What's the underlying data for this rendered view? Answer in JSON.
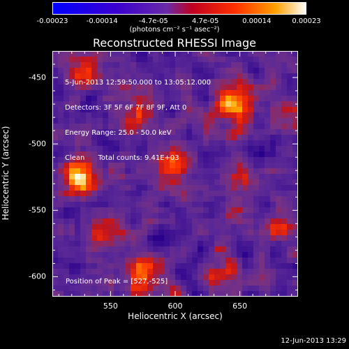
{
  "chart_data": {
    "type": "heatmap",
    "title": "Reconstructed RHESSI Image",
    "xlabel": "Heliocentric X (arcsec)",
    "ylabel": "Heliocentric Y (arcsec)",
    "xlim": [
      505,
      695
    ],
    "ylim": [
      -615,
      -430
    ],
    "x_ticks": [
      "550",
      "600",
      "650"
    ],
    "x_tick_values": [
      550,
      600,
      650
    ],
    "y_ticks": [
      "-450",
      "-500",
      "-550",
      "-600"
    ],
    "y_tick_values": [
      -450,
      -500,
      -550,
      -600
    ],
    "colorbar": {
      "ticks": [
        "-0.00023",
        "-0.00014",
        "-4.7e-05",
        "4.7e-05",
        "0.00014",
        "0.00023"
      ],
      "tick_values": [
        -0.00023,
        -0.00014,
        -4.7e-05,
        4.7e-05,
        0.00014,
        0.00023
      ],
      "range": [
        -0.00023,
        0.00023
      ],
      "units": "(photons cm⁻² s⁻¹ asec⁻²)"
    },
    "annotations": [
      "5-Jun-2013 12:59:50.000 to 13:05:12.000",
      "Detectors: 3F 5F 6F 7F 8F 9F, Att 0",
      "Energy Range: 25.0 - 50.0 keV",
      "Clean      Total counts: 9.41E+03"
    ],
    "peak_label": "Position of Peak = [527,-525]",
    "peak": [
      527,
      -525
    ],
    "bright_sources": [
      {
        "x": 527,
        "y": -525,
        "level": 1.0
      },
      {
        "x": 645,
        "y": -470,
        "level": 0.85
      },
      {
        "x": 570,
        "y": -475,
        "level": 0.55
      },
      {
        "x": 575,
        "y": -600,
        "level": 0.65
      },
      {
        "x": 640,
        "y": -600,
        "level": 0.45
      },
      {
        "x": 600,
        "y": -515,
        "level": 0.45
      },
      {
        "x": 650,
        "y": -530,
        "level": 0.4
      },
      {
        "x": 545,
        "y": -565,
        "level": 0.45
      },
      {
        "x": 685,
        "y": -560,
        "level": 0.4
      },
      {
        "x": 530,
        "y": -445,
        "level": 0.45
      },
      {
        "x": 690,
        "y": -480,
        "level": 0.35
      }
    ]
  },
  "footer": {
    "timestamp": "12-Jun-2013 13:29"
  },
  "colors": {
    "axis": "#ffffff",
    "background": "#000000"
  }
}
